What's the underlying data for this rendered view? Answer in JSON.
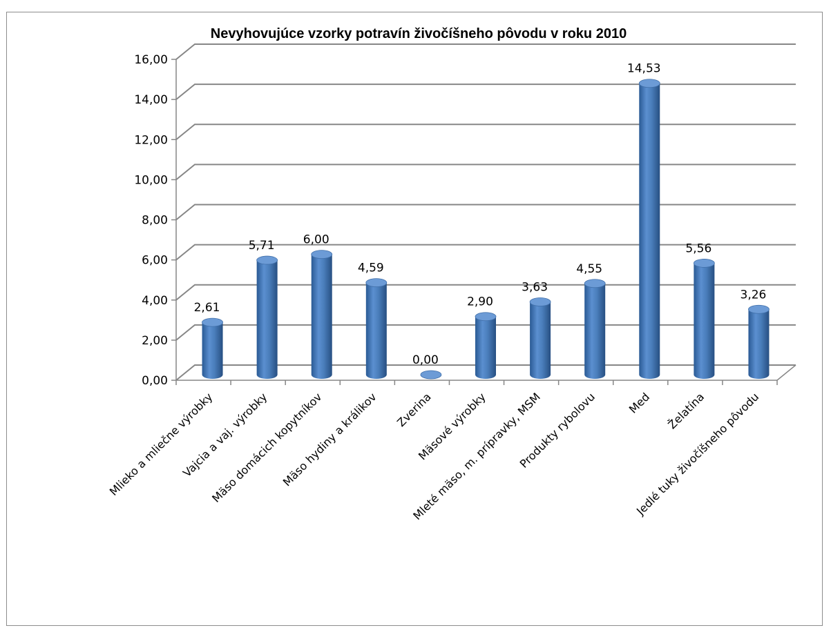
{
  "chart_data": {
    "type": "bar",
    "title": "Nevyhovujúce vzorky potravín živočíšneho pôvodu v roku 2010",
    "xlabel": "",
    "ylabel": "",
    "ylim": [
      0,
      16
    ],
    "yticks": [
      "0,00",
      "2,00",
      "4,00",
      "6,00",
      "8,00",
      "10,00",
      "12,00",
      "14,00",
      "16,00"
    ],
    "grid": true,
    "legend": "none",
    "bar_color": "#4a7ebb",
    "categories": [
      "Mlieko a mliečne výrobky",
      "Vajcia a vaj. výrobky",
      "Mäso domácich kopytníkov",
      "Mäso hydiny a králikov",
      "Zverina",
      "Mäsové výrobky",
      "Mleté mäso, m. prípravky, MSM",
      "Produkty rybolovu",
      "Med",
      "Želatína",
      "Jedlé tuky živočíšneho pôvodu"
    ],
    "values": [
      2.61,
      5.71,
      6.0,
      4.59,
      0.0,
      2.9,
      3.63,
      4.55,
      14.53,
      5.56,
      3.26
    ],
    "value_labels": [
      "2,61",
      "5,71",
      "6,00",
      "4,59",
      "0,00",
      "2,90",
      "3,63",
      "4,55",
      "14,53",
      "5,56",
      "3,26"
    ]
  }
}
